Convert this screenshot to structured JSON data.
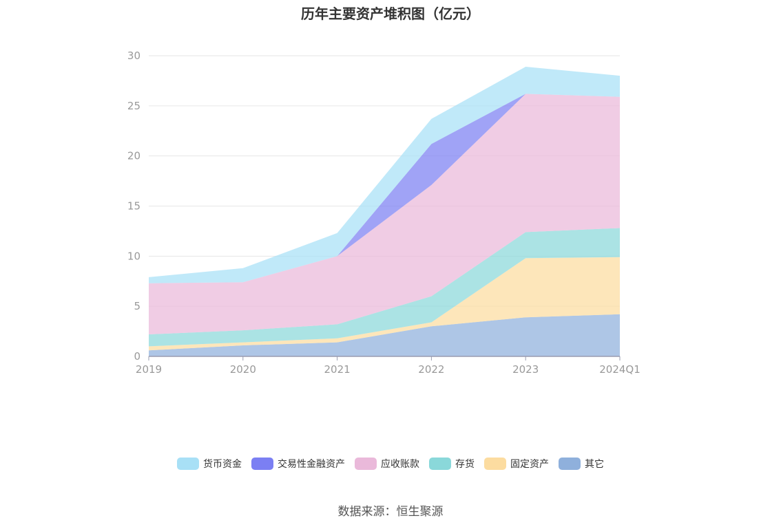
{
  "chart_data": {
    "type": "area",
    "stacked": true,
    "title": "历年主要资产堆积图（亿元）",
    "categories": [
      "2019",
      "2020",
      "2021",
      "2022",
      "2023",
      "2024Q1"
    ],
    "ylim": [
      0,
      30
    ],
    "yticks": [
      0,
      5,
      10,
      15,
      20,
      25,
      30
    ],
    "grid": true,
    "legend_position": "bottom",
    "series": [
      {
        "name": "其它",
        "color": "#8fb0dc",
        "values": [
          0.6,
          1.1,
          1.4,
          3.0,
          3.9,
          4.2
        ]
      },
      {
        "name": "固定资产",
        "color": "#fcdca0",
        "values": [
          0.4,
          0.3,
          0.4,
          0.4,
          5.9,
          5.7
        ]
      },
      {
        "name": "存货",
        "color": "#8ad8da",
        "values": [
          1.2,
          1.2,
          1.4,
          2.6,
          2.6,
          2.9
        ]
      },
      {
        "name": "应收账款",
        "color": "#eab9da",
        "values": [
          5.1,
          4.8,
          6.8,
          11.1,
          13.8,
          13.1
        ]
      },
      {
        "name": "交易性金融资产",
        "color": "#7b7ff3",
        "values": [
          0,
          0,
          0,
          4.1,
          0,
          0
        ]
      },
      {
        "name": "货币资金",
        "color": "#a8e0f6",
        "values": [
          0.6,
          1.4,
          2.3,
          2.5,
          2.7,
          2.1
        ]
      }
    ],
    "legend_order": [
      "货币资金",
      "交易性金融资产",
      "应收账款",
      "存货",
      "固定资产",
      "其它"
    ]
  },
  "source_text": "数据来源：恒生聚源"
}
